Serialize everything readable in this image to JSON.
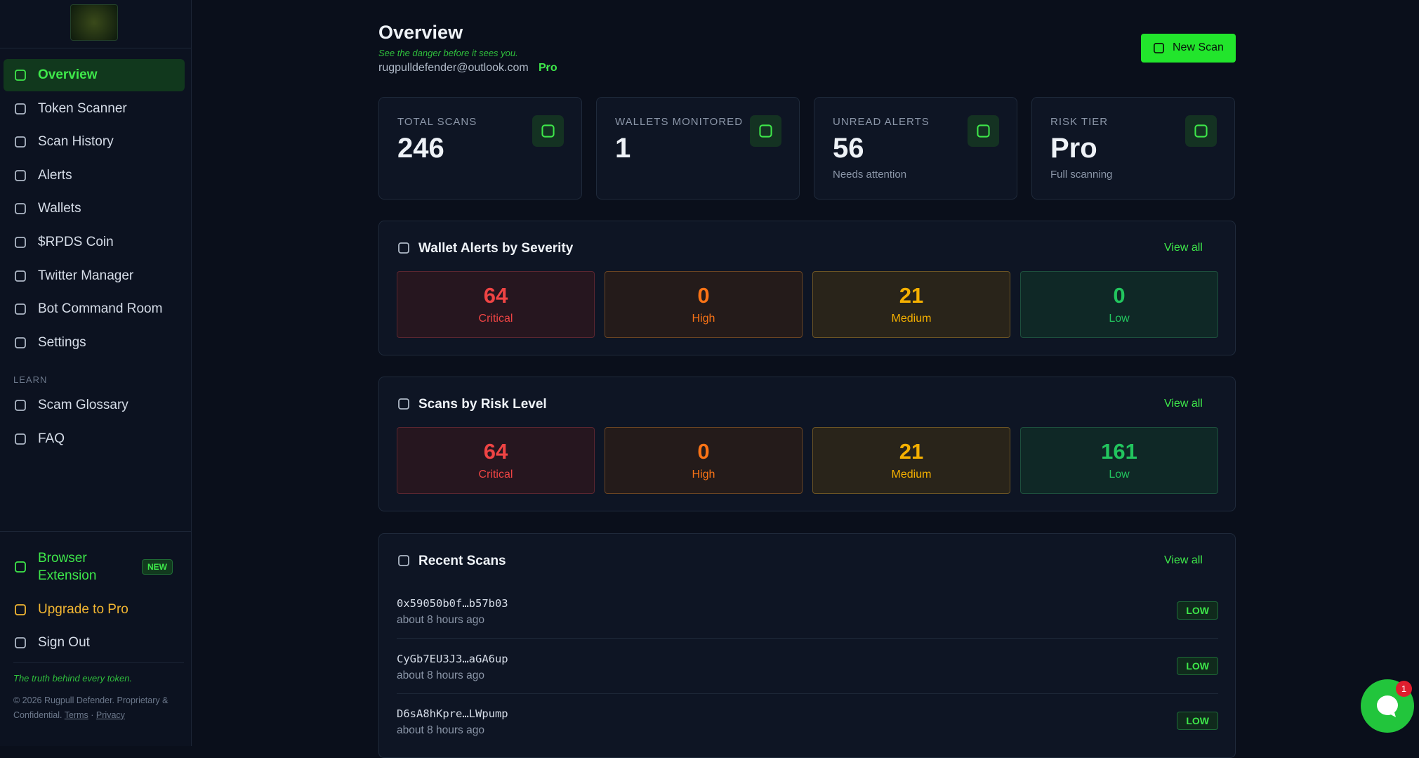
{
  "sidebar": {
    "nav": [
      {
        "label": "Overview",
        "active": true
      },
      {
        "label": "Token Scanner",
        "active": false
      },
      {
        "label": "Scan History",
        "active": false
      },
      {
        "label": "Alerts",
        "active": false
      },
      {
        "label": "Wallets",
        "active": false
      },
      {
        "label": "$RPDS Coin",
        "active": false
      },
      {
        "label": "Twitter Manager",
        "active": false
      },
      {
        "label": "Bot Command Room",
        "active": false
      },
      {
        "label": "Settings",
        "active": false
      }
    ],
    "learn_heading": "LEARN",
    "learn": [
      "Scam Glossary",
      "FAQ"
    ],
    "extension": {
      "label": "Browser Extension",
      "badge": "NEW"
    },
    "upgrade": "Upgrade to Pro",
    "sign_out": "Sign Out",
    "tagline": "The truth behind every token.",
    "copyright": "© 2026 Rugpull Defender. Proprietary & Confidential.",
    "links": [
      "Terms",
      "Privacy"
    ],
    "link_separator": "·"
  },
  "header": {
    "title": "Overview",
    "tagline": "See the danger before it sees you.",
    "email": "rugpulldefender@outlook.com",
    "separator": "·",
    "plan": "Pro",
    "button": "New Scan"
  },
  "stats": [
    {
      "label": "TOTAL SCANS",
      "value": 246
    },
    {
      "label": "WALLETS MONITORED",
      "value": 1
    },
    {
      "label": "UNREAD ALERTS",
      "value": 56,
      "note": "Needs attention"
    },
    {
      "label": "RISK TIER",
      "value": "Pro",
      "note": "Full scanning"
    }
  ],
  "panels": [
    {
      "title": "Wallet Alerts by Severity",
      "link": "View all",
      "levels": [
        {
          "count": 64,
          "label": "Critical"
        },
        {
          "count": 0,
          "label": "High"
        },
        {
          "count": 21,
          "label": "Medium"
        },
        {
          "count": 0,
          "label": "Low"
        }
      ]
    },
    {
      "title": "Scans by Risk Level",
      "link": "View all",
      "levels": [
        {
          "count": 64,
          "label": "Critical"
        },
        {
          "count": 0,
          "label": "High"
        },
        {
          "count": 21,
          "label": "Medium"
        },
        {
          "count": 161,
          "label": "Low"
        }
      ]
    }
  ],
  "recent": {
    "title": "Recent Scans",
    "link": "View all",
    "rows": [
      {
        "address": "0x59050b0f…b57b03",
        "time": "about 8 hours ago",
        "risk": "LOW"
      },
      {
        "address": "CyGb7EU3J3…aGA6up",
        "time": "about 8 hours ago",
        "risk": "LOW"
      },
      {
        "address": "D6sA8hKpre…LWpump",
        "time": "about 8 hours ago",
        "risk": "LOW"
      }
    ]
  },
  "chat": {
    "badge": 1
  }
}
